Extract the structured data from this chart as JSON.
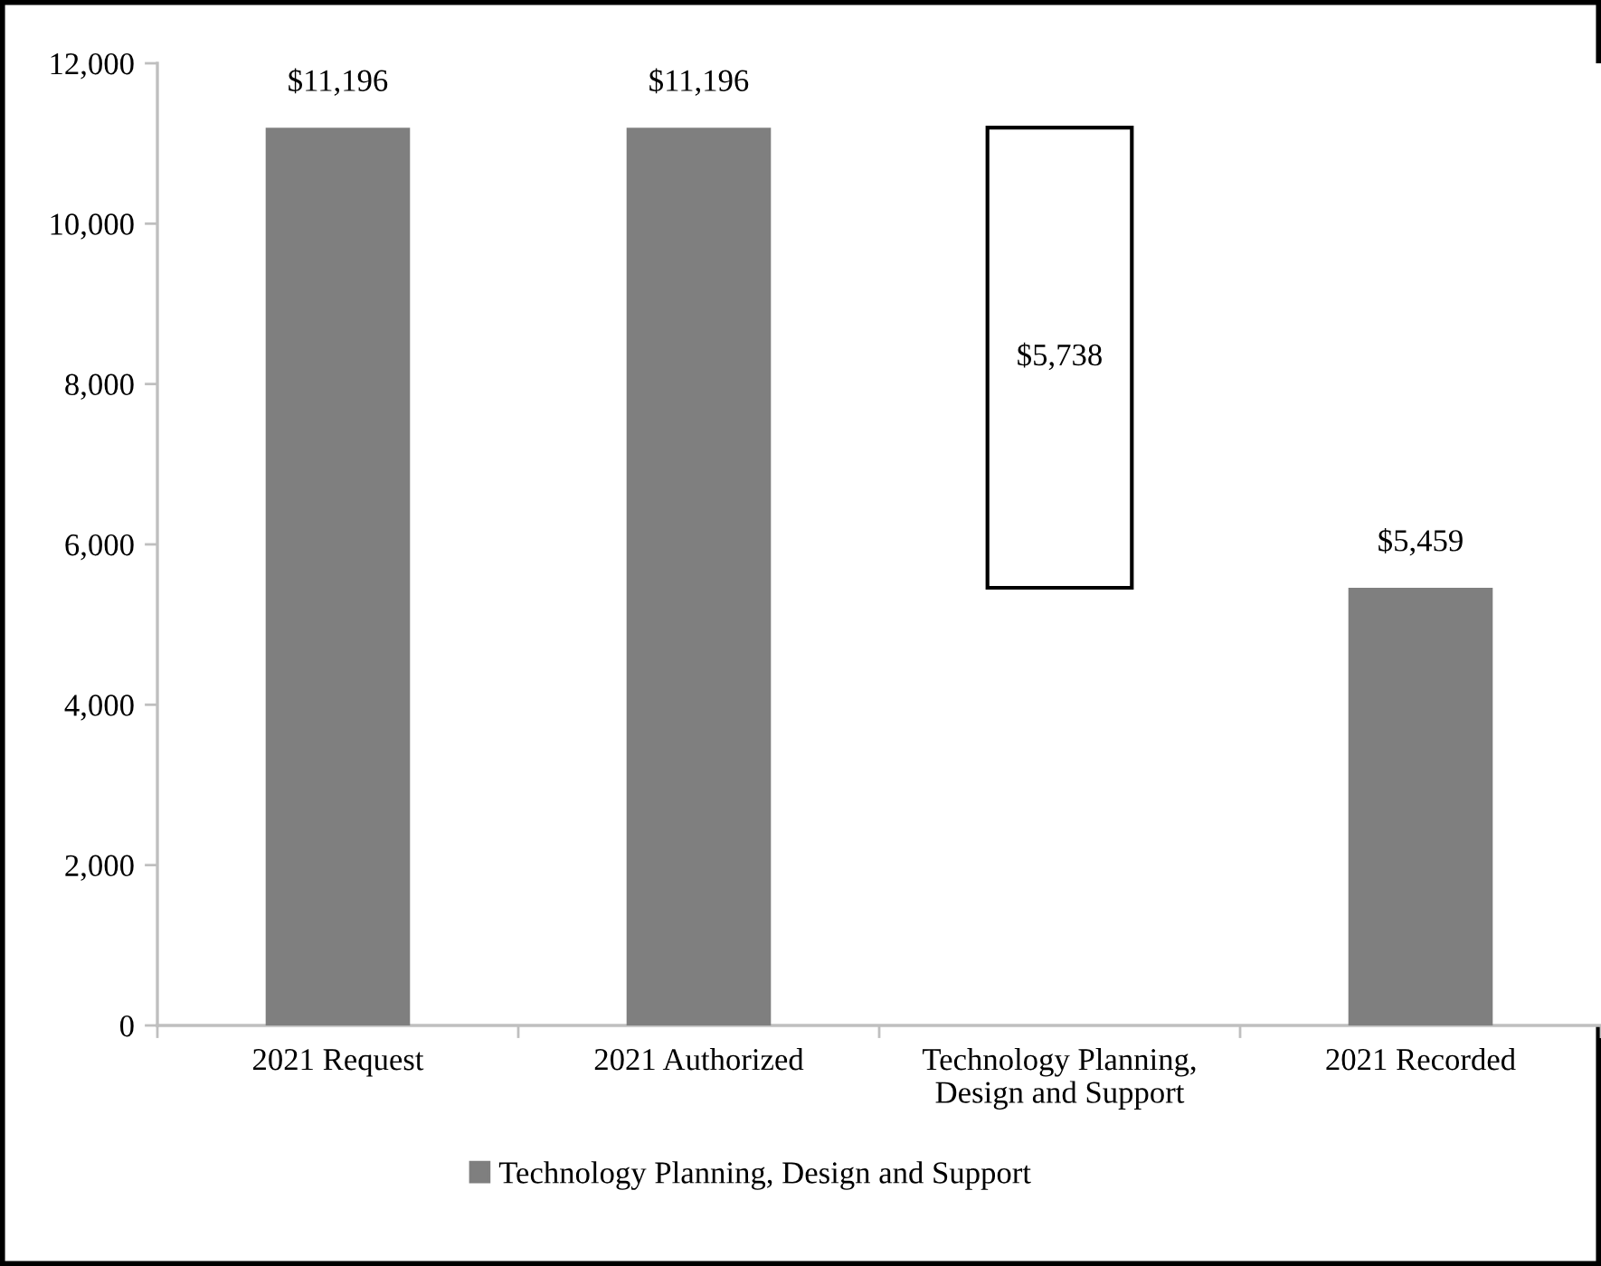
{
  "chart_data": {
    "type": "bar",
    "categories": [
      "2021 Request",
      "2021 Authorized",
      "Technology Planning,\nDesign and Support",
      "2021 Recorded"
    ],
    "series": [
      {
        "name": "Technology Planning, Design and Support",
        "color": "#7f7f7f",
        "colors": [
          "#7f7f7f",
          "#7f7f7f",
          "#ffffff",
          "#7f7f7f"
        ],
        "values": [
          11196,
          11196,
          5738,
          5459
        ],
        "base": [
          0,
          0,
          5459,
          0
        ]
      }
    ],
    "value_labels": [
      "$11,196",
      "$11,196",
      "$5,738",
      "$5,459"
    ],
    "ylim": [
      0,
      12000
    ],
    "yticks": [
      0,
      {
        "value": 2000,
        "label": "2,000"
      },
      {
        "value": 4000,
        "label": "4,000"
      },
      {
        "value": 6000,
        "label": "6,000"
      },
      {
        "value": 8000,
        "label": "8,000"
      },
      {
        "value": 10000,
        "label": "10,000"
      },
      {
        "value": 12000,
        "label": "12,000"
      }
    ],
    "grid": false,
    "legend": "bottom"
  }
}
